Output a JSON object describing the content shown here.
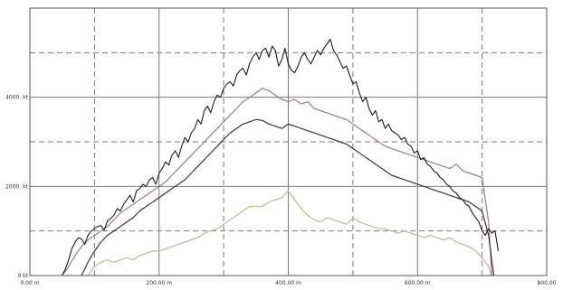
{
  "chart_data": {
    "type": "line",
    "title": "",
    "xlabel": "",
    "ylabel": "",
    "xlim": [
      0,
      800
    ],
    "ylim": [
      0,
      6000
    ],
    "grid": true,
    "x_tick_labels": [
      {
        "value": 0,
        "label": "0.00 m"
      },
      {
        "value": 200,
        "label": "200.00 m"
      },
      {
        "value": 400,
        "label": "400.00 m"
      },
      {
        "value": 600,
        "label": "600.00 m"
      },
      {
        "value": 800,
        "label": "800.00"
      }
    ],
    "y_tick_labels": [
      {
        "value": 0,
        "label": "0 kt"
      },
      {
        "value": 2000,
        "label": "2000. kt"
      },
      {
        "value": 4000,
        "label": "4000. kt"
      }
    ],
    "colors": {
      "black": "#1e1e1e",
      "purple": "#4a2e44",
      "pink": "#a07a8a",
      "olive": "#b9bb9a",
      "grid": "#7a7a7a",
      "frame": "#555555"
    },
    "series": [
      {
        "color": "black",
        "x": [
          50,
          55,
          60,
          65,
          70,
          75,
          80,
          85,
          90,
          95,
          100,
          105,
          110,
          115,
          120,
          125,
          130,
          135,
          140,
          145,
          150,
          155,
          160,
          165,
          170,
          175,
          180,
          185,
          190,
          195,
          200,
          205,
          210,
          215,
          220,
          225,
          230,
          235,
          240,
          245,
          250,
          255,
          260,
          265,
          270,
          275,
          280,
          285,
          290,
          295,
          300,
          305,
          310,
          315,
          320,
          325,
          330,
          335,
          340,
          345,
          350,
          355,
          360,
          365,
          370,
          375,
          380,
          385,
          390,
          395,
          400,
          405,
          410,
          415,
          420,
          425,
          430,
          435,
          440,
          445,
          450,
          455,
          460,
          465,
          470,
          475,
          480,
          485,
          490,
          495,
          500,
          505,
          510,
          515,
          520,
          525,
          530,
          535,
          540,
          545,
          550,
          555,
          560,
          565,
          570,
          575,
          580,
          585,
          590,
          595,
          600,
          605,
          610,
          615,
          620,
          625,
          630,
          635,
          640,
          645,
          650,
          655,
          660,
          665,
          670,
          675,
          680,
          685,
          690,
          695,
          700,
          705,
          710,
          715,
          720,
          725
        ],
        "values": [
          0,
          150,
          350,
          600,
          750,
          850,
          820,
          700,
          900,
          1000,
          1050,
          1100,
          1120,
          1020,
          1220,
          1280,
          1350,
          1500,
          1450,
          1600,
          1700,
          1800,
          1650,
          1900,
          1950,
          2050,
          2000,
          2150,
          2200,
          2050,
          2300,
          2400,
          2550,
          2480,
          2700,
          2800,
          2650,
          2900,
          3100,
          3000,
          3200,
          3300,
          3500,
          3400,
          3700,
          3800,
          3650,
          3900,
          4050,
          4000,
          4200,
          4300,
          4350,
          4250,
          4500,
          4600,
          4650,
          4500,
          4750,
          4900,
          5000,
          4850,
          5050,
          5100,
          4900,
          5150,
          5050,
          4700,
          4850,
          5100,
          4750,
          4600,
          4550,
          4700,
          4900,
          5000,
          4850,
          4750,
          4900,
          5050,
          4950,
          5100,
          5200,
          5300,
          5050,
          4950,
          4800,
          4650,
          4700,
          4500,
          4300,
          4350,
          4100,
          3900,
          4000,
          3750,
          3600,
          3700,
          3450,
          3500,
          3300,
          3400,
          3250,
          3200,
          3150,
          3050,
          3100,
          2950,
          2900,
          2750,
          2800,
          2600,
          2650,
          2500,
          2450,
          2350,
          2300,
          2200,
          2150,
          2050,
          2000,
          1900,
          1850,
          1750,
          1700,
          1600,
          1550,
          1400,
          1300,
          1200,
          1000,
          900,
          1050,
          950,
          1000,
          550
        ]
      },
      {
        "color": "pink",
        "x": [
          50,
          60,
          70,
          80,
          90,
          100,
          110,
          120,
          130,
          140,
          150,
          160,
          170,
          180,
          190,
          200,
          210,
          220,
          230,
          240,
          250,
          260,
          270,
          280,
          290,
          300,
          310,
          320,
          330,
          340,
          350,
          360,
          370,
          380,
          390,
          400,
          410,
          420,
          430,
          440,
          450,
          460,
          470,
          480,
          490,
          500,
          510,
          520,
          530,
          540,
          550,
          560,
          570,
          580,
          590,
          600,
          610,
          620,
          630,
          640,
          650,
          660,
          670,
          680,
          690,
          700,
          710,
          715
        ],
        "values": [
          0,
          200,
          450,
          650,
          800,
          900,
          1000,
          1100,
          1250,
          1400,
          1500,
          1600,
          1700,
          1800,
          1900,
          2000,
          2100,
          2250,
          2400,
          2550,
          2700,
          2850,
          3000,
          3150,
          3300,
          3450,
          3600,
          3750,
          3900,
          4000,
          4100,
          4200,
          4150,
          4050,
          3950,
          3900,
          3950,
          3850,
          3900,
          3750,
          3700,
          3650,
          3600,
          3550,
          3500,
          3400,
          3300,
          3200,
          3100,
          3000,
          2900,
          2850,
          2800,
          2750,
          2700,
          2650,
          2600,
          2550,
          2500,
          2450,
          2400,
          2500,
          2350,
          2300,
          2250,
          2200,
          1200,
          0
        ]
      },
      {
        "color": "purple",
        "x": [
          80,
          90,
          100,
          110,
          120,
          130,
          140,
          150,
          160,
          170,
          180,
          190,
          200,
          210,
          220,
          230,
          240,
          250,
          260,
          270,
          280,
          290,
          300,
          310,
          320,
          330,
          340,
          350,
          360,
          370,
          380,
          390,
          400,
          410,
          420,
          430,
          440,
          450,
          460,
          470,
          480,
          490,
          500,
          510,
          520,
          530,
          540,
          550,
          560,
          570,
          580,
          590,
          600,
          610,
          620,
          630,
          640,
          650,
          660,
          670,
          680,
          690,
          700,
          710,
          718
        ],
        "values": [
          0,
          300,
          550,
          750,
          900,
          1000,
          1100,
          1200,
          1300,
          1450,
          1550,
          1650,
          1750,
          1850,
          1950,
          2050,
          2150,
          2300,
          2450,
          2600,
          2750,
          2900,
          3050,
          3200,
          3300,
          3400,
          3450,
          3500,
          3480,
          3400,
          3350,
          3300,
          3400,
          3350,
          3300,
          3250,
          3200,
          3150,
          3100,
          3050,
          3000,
          2950,
          2850,
          2750,
          2650,
          2550,
          2450,
          2350,
          2250,
          2200,
          2150,
          2100,
          2050,
          2000,
          1950,
          1900,
          1850,
          1800,
          1750,
          1700,
          1650,
          1550,
          1450,
          900,
          0
        ]
      },
      {
        "color": "olive",
        "x": [
          90,
          100,
          110,
          120,
          130,
          140,
          150,
          160,
          170,
          180,
          190,
          200,
          210,
          220,
          230,
          240,
          250,
          260,
          270,
          280,
          290,
          300,
          310,
          320,
          330,
          340,
          350,
          360,
          370,
          380,
          390,
          400,
          410,
          420,
          430,
          440,
          450,
          460,
          470,
          480,
          490,
          500,
          510,
          520,
          530,
          540,
          550,
          560,
          570,
          580,
          590,
          600,
          610,
          620,
          630,
          640,
          650,
          660,
          670,
          680,
          690,
          700,
          710,
          715
        ],
        "values": [
          0,
          200,
          300,
          350,
          300,
          350,
          400,
          350,
          450,
          500,
          550,
          550,
          600,
          650,
          700,
          750,
          800,
          850,
          950,
          1000,
          1050,
          1150,
          1250,
          1350,
          1450,
          1550,
          1550,
          1550,
          1650,
          1700,
          1750,
          1900,
          1700,
          1500,
          1350,
          1250,
          1200,
          1300,
          1250,
          1200,
          1150,
          1300,
          1200,
          1150,
          1100,
          1050,
          1050,
          1000,
          950,
          1000,
          950,
          900,
          850,
          900,
          850,
          800,
          850,
          750,
          700,
          650,
          550,
          400,
          200,
          0
        ]
      }
    ]
  }
}
